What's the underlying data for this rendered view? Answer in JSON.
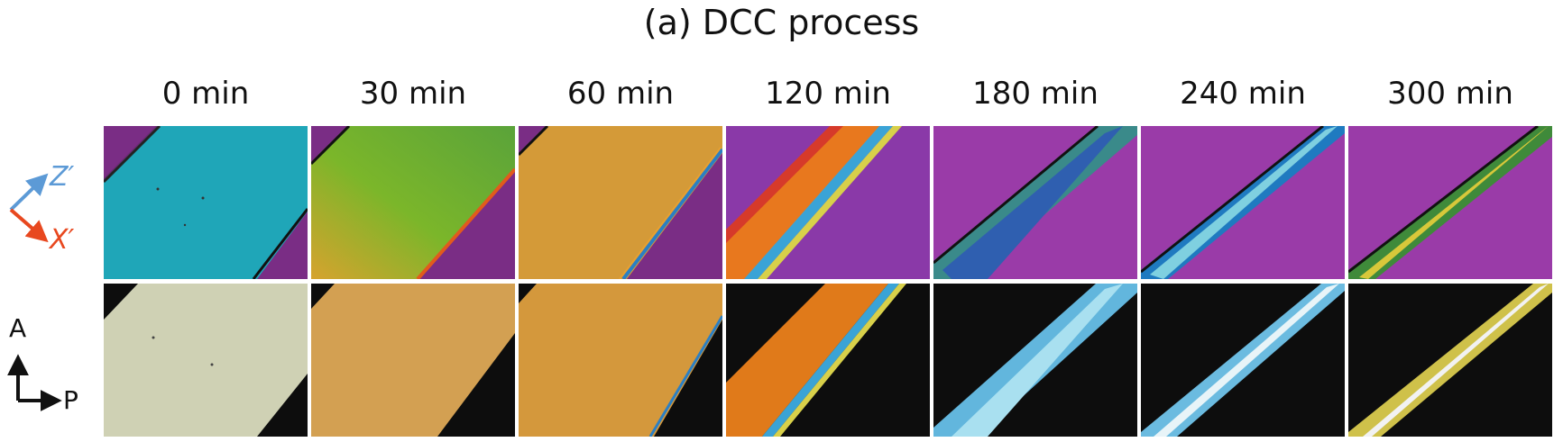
{
  "title": "(a) DCC process",
  "columns": [
    {
      "label": "0 min"
    },
    {
      "label": "30 min"
    },
    {
      "label": "60 min"
    },
    {
      "label": "120 min"
    },
    {
      "label": "180 min"
    },
    {
      "label": "240 min"
    },
    {
      "label": "300 min"
    }
  ],
  "left_labels": {
    "z_axis": "Z′",
    "x_axis": "X′",
    "analyzer": "A",
    "polarizer": "P"
  },
  "colors": {
    "z_arrow": "#5c9ad6",
    "x_arrow": "#e8481f",
    "magenta_bg": "#9a3ba8",
    "dark_bg": "#0d0d0d"
  }
}
